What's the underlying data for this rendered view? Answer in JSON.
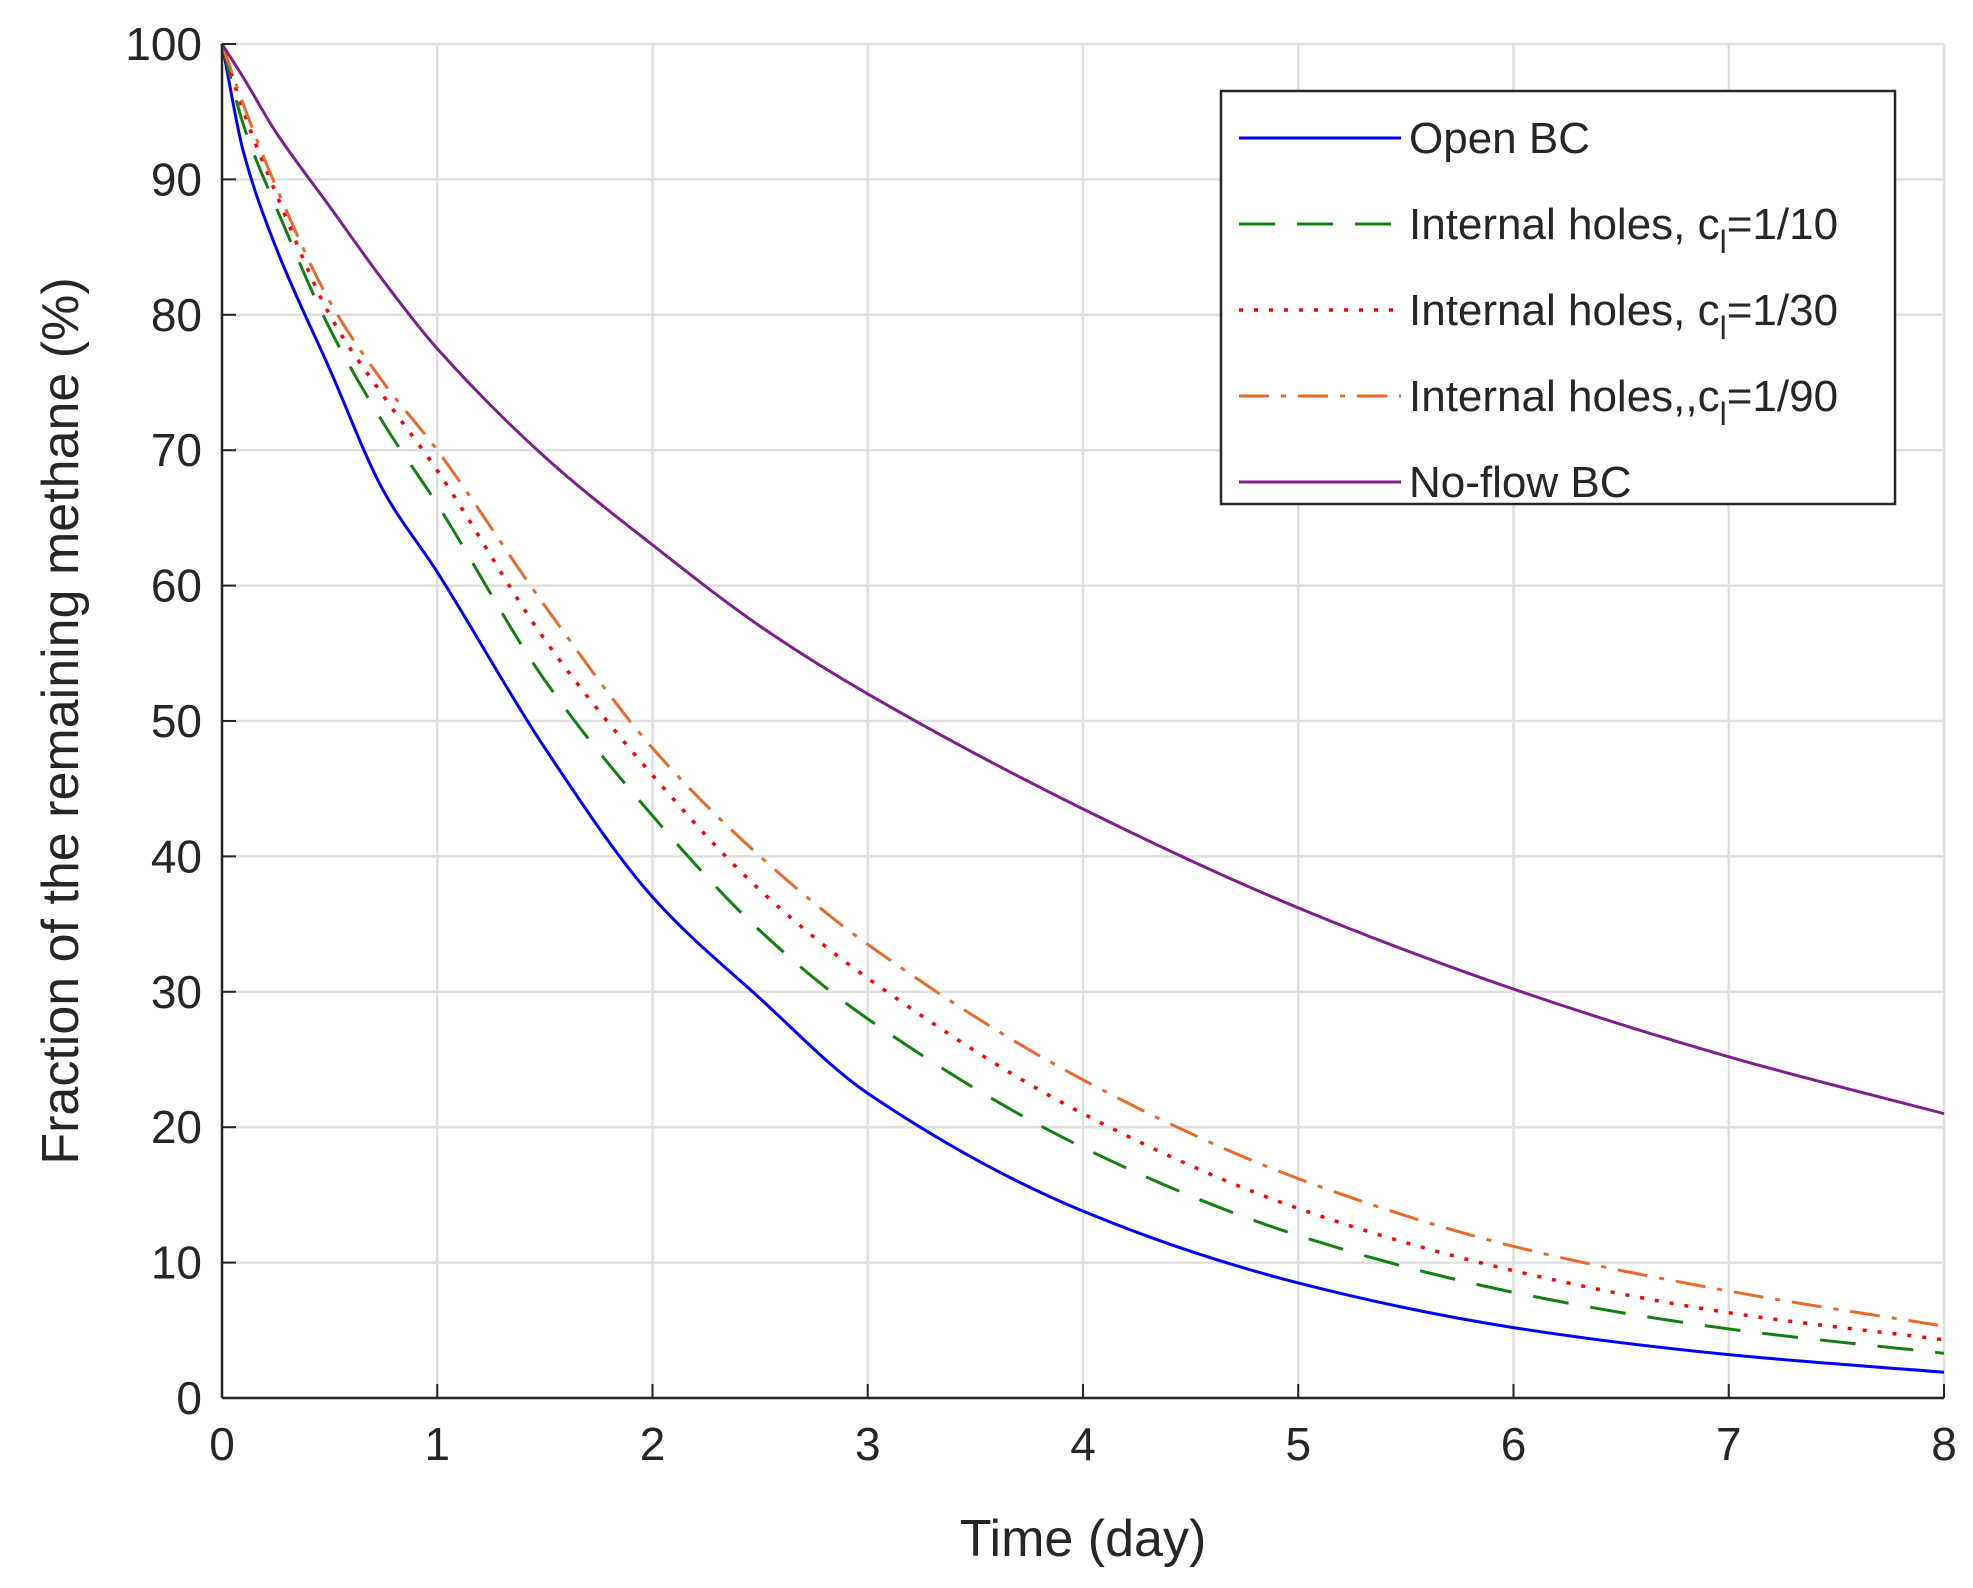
{
  "chart_data": {
    "type": "line",
    "title": "",
    "xlabel": "Time (day)",
    "ylabel": "Fraction of the remaining methane (%)",
    "xlim": [
      0,
      8
    ],
    "ylim": [
      0,
      100
    ],
    "xticks": [
      "0",
      "1",
      "2",
      "3",
      "4",
      "5",
      "6",
      "7",
      "8"
    ],
    "yticks": [
      "0",
      "10",
      "20",
      "30",
      "40",
      "50",
      "60",
      "70",
      "80",
      "90",
      "100"
    ],
    "grid": true,
    "legend_position": "top-right",
    "x": [
      0,
      0.1,
      0.25,
      0.5,
      0.75,
      1,
      1.5,
      2,
      2.5,
      3,
      4,
      5,
      6,
      7,
      8
    ],
    "series": [
      {
        "name": "Open BC",
        "legend": {
          "prefix": "Open BC",
          "sub": "",
          "suffix": ""
        },
        "color": "#0000ff",
        "dash": "none",
        "width": 3,
        "values": [
          100,
          92,
          85,
          76,
          67,
          61,
          48,
          37,
          29.5,
          22.5,
          13.8,
          8.5,
          5.2,
          3.2,
          1.9
        ]
      },
      {
        "name": "Internal holes, c_l=1/10",
        "legend": {
          "prefix": "Internal holes, c",
          "sub": "l",
          "suffix": "=1/10"
        },
        "color": "#118011",
        "dash": "36 22",
        "width": 3,
        "values": [
          100,
          94,
          88,
          79,
          72,
          66,
          53,
          43,
          34.5,
          28,
          18.5,
          12,
          7.8,
          5.1,
          3.3
        ]
      },
      {
        "name": "Internal holes, c_l=1/30",
        "legend": {
          "prefix": "Internal holes, c",
          "sub": "l",
          "suffix": "=1/30"
        },
        "color": "#ff0000",
        "dash": "4 11",
        "width": 3.5,
        "values": [
          100,
          95,
          89,
          80,
          74,
          68.5,
          56,
          46,
          37.5,
          31,
          21,
          14,
          9.4,
          6.3,
          4.3
        ]
      },
      {
        "name": "Internal holes,,c_l=1/90",
        "legend": {
          "prefix": "Internal holes,,c",
          "sub": "l",
          "suffix": "=1/90"
        },
        "color": "#e8692a",
        "dash": "30 12 5 12",
        "width": 3,
        "values": [
          100,
          95.5,
          89.5,
          81,
          75,
          70,
          58.5,
          48,
          40,
          33.5,
          23.5,
          16.2,
          11.2,
          7.9,
          5.3
        ]
      },
      {
        "name": "No-flow BC",
        "legend": {
          "prefix": "No-flow BC",
          "sub": "",
          "suffix": ""
        },
        "color": "#7e1f8e",
        "dash": "none",
        "width": 3,
        "values": [
          100,
          97.5,
          93.5,
          88,
          82.5,
          77.5,
          69.5,
          63,
          57,
          52,
          43.5,
          36.2,
          30.2,
          25.2,
          21
        ]
      }
    ]
  }
}
